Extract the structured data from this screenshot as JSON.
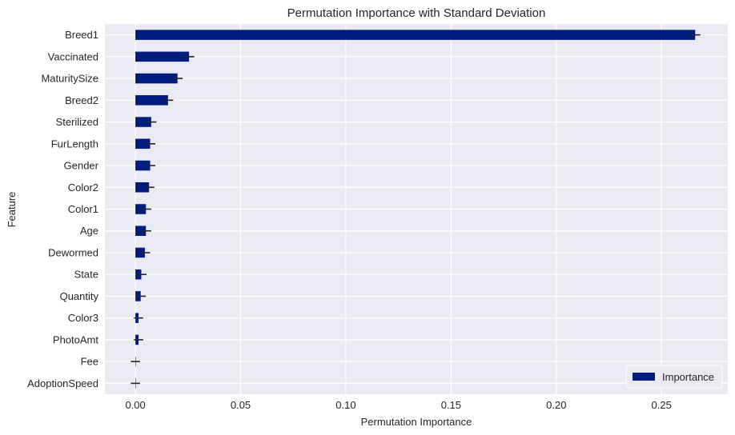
{
  "chart_data": {
    "type": "bar",
    "orientation": "horizontal",
    "title": "Permutation Importance with Standard Deviation",
    "xlabel": "Permutation Importance",
    "ylabel": "Feature",
    "xlim": [
      -0.0145,
      0.2815
    ],
    "xticks": [
      0.0,
      0.05,
      0.1,
      0.15,
      0.2,
      0.25
    ],
    "xtick_labels": [
      "0.00",
      "0.05",
      "0.10",
      "0.15",
      "0.20",
      "0.25"
    ],
    "grid": true,
    "legend_position": "bottom-right",
    "categories": [
      "Breed1",
      "Vaccinated",
      "MaturitySize",
      "Breed2",
      "Sterilized",
      "FurLength",
      "Gender",
      "Color2",
      "Color1",
      "Age",
      "Dewormed",
      "State",
      "Quantity",
      "Color3",
      "PhotoAmt",
      "Fee",
      "AdoptionSpeed"
    ],
    "series": [
      {
        "name": "Importance",
        "color": "#001c7f",
        "values": [
          0.266,
          0.0255,
          0.02,
          0.0155,
          0.0075,
          0.007,
          0.007,
          0.0065,
          0.005,
          0.005,
          0.0045,
          0.0028,
          0.0025,
          0.0015,
          0.0015,
          0.0,
          0.0
        ],
        "errors": [
          0.0025,
          0.0025,
          0.0025,
          0.0025,
          0.0025,
          0.0025,
          0.0025,
          0.0025,
          0.0025,
          0.0025,
          0.0025,
          0.0025,
          0.0025,
          0.0022,
          0.0022,
          0.0022,
          0.0022
        ]
      }
    ]
  }
}
